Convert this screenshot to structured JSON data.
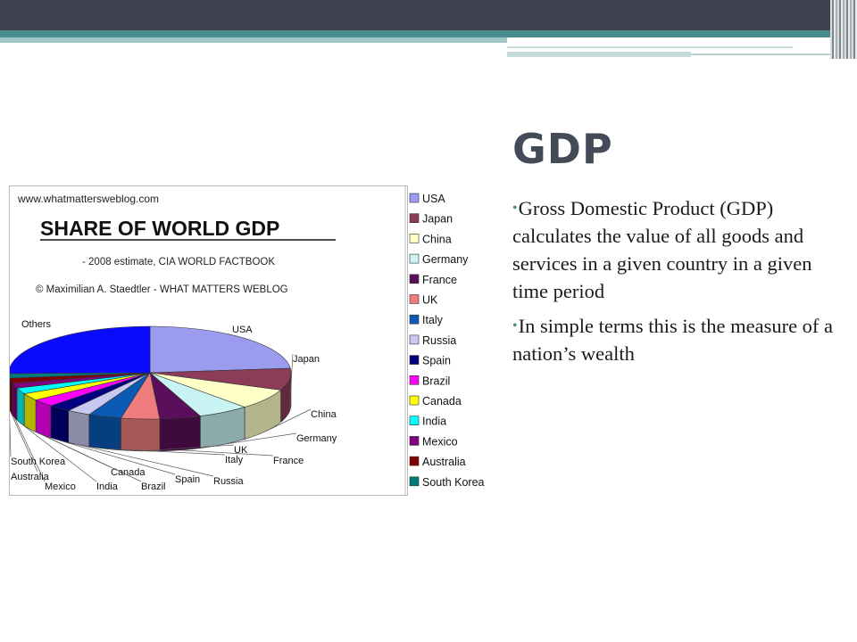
{
  "slide": {
    "title": "GDP",
    "bullets": [
      "Gross Domestic Product (GDP) calculates the value of all goods and services in a given country in a given time period",
      "In simple terms this is the measure of a nation’s wealth"
    ]
  },
  "chart_data": {
    "type": "pie",
    "website": "www.whatmattersweblog.com",
    "title": "SHARE OF WORLD GDP",
    "subtitle": "- 2008 estimate, CIA WORLD FACTBOOK",
    "credit": "© Maximilian A. Staedtler - WHAT MATTERS WEBLOG",
    "legend_position": "right",
    "slices": [
      {
        "name": "USA",
        "value": 23.5,
        "color": "#9b9bf0"
      },
      {
        "name": "Japan",
        "value": 7.6,
        "color": "#8c3b58"
      },
      {
        "name": "China",
        "value": 7.2,
        "color": "#ffffc8"
      },
      {
        "name": "Germany",
        "value": 5.9,
        "color": "#c8f4f4"
      },
      {
        "name": "France",
        "value": 4.7,
        "color": "#5a0f5a"
      },
      {
        "name": "UK",
        "value": 4.4,
        "color": "#f07d7d"
      },
      {
        "name": "Italy",
        "value": 3.8,
        "color": "#0a5ab4"
      },
      {
        "name": "Russia",
        "value": 2.7,
        "color": "#c8c8f0"
      },
      {
        "name": "Spain",
        "value": 2.6,
        "color": "#000080"
      },
      {
        "name": "Brazil",
        "value": 2.6,
        "color": "#ff00ff"
      },
      {
        "name": "Canada",
        "value": 2.5,
        "color": "#ffff00"
      },
      {
        "name": "India",
        "value": 2.1,
        "color": "#00ffff"
      },
      {
        "name": "Mexico",
        "value": 1.8,
        "color": "#800080"
      },
      {
        "name": "Australia",
        "value": 1.7,
        "color": "#800000"
      },
      {
        "name": "South Korea",
        "value": 1.6,
        "color": "#007b7b"
      },
      {
        "name": "Others",
        "value": 25.3,
        "color": "#0a0aff"
      }
    ],
    "legend": [
      "USA",
      "Japan",
      "China",
      "Germany",
      "France",
      "UK",
      "Italy",
      "Russia",
      "Spain",
      "Brazil",
      "Canada",
      "India",
      "Mexico",
      "Australia",
      "South Korea"
    ]
  }
}
